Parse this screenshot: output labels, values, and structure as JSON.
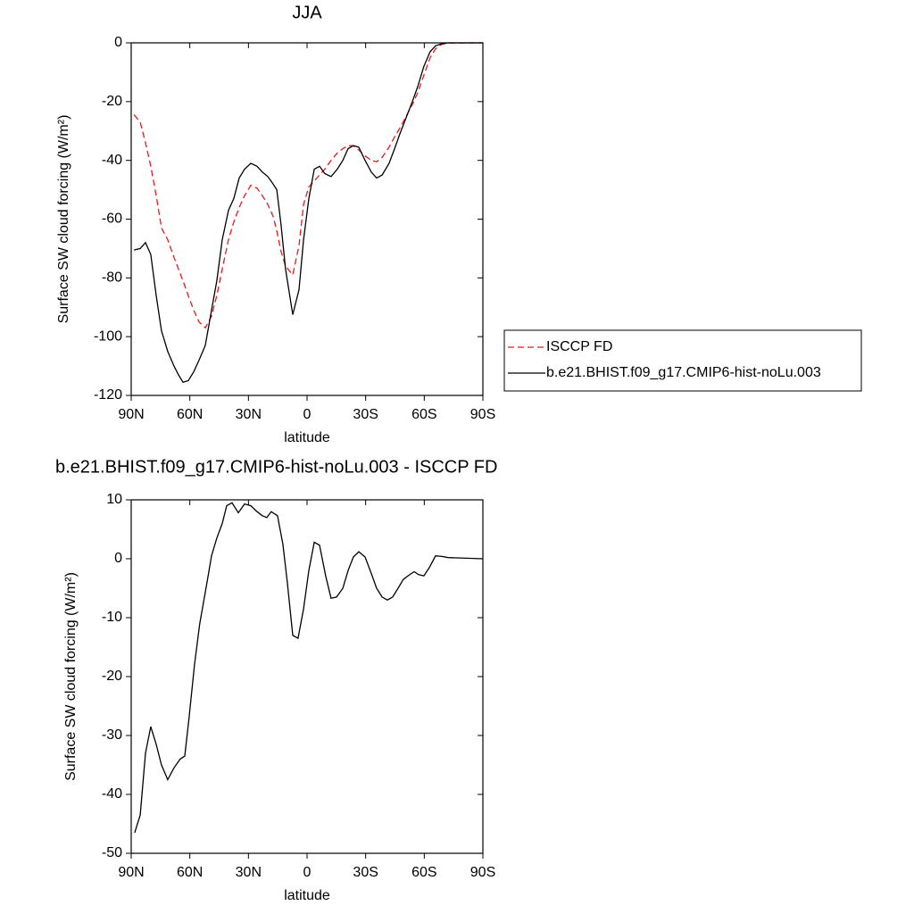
{
  "chart_data": [
    {
      "type": "line",
      "title": "JJA",
      "x_label": "latitude",
      "y_label": "Surface SW cloud forcing (W/m²)",
      "x": [
        88.6,
        85.4,
        82.7,
        80,
        77.2,
        74.5,
        71.3,
        68.1,
        65.8,
        63.5,
        60.8,
        58,
        55.3,
        52.1,
        48.9,
        46.2,
        43.4,
        40.2,
        37.5,
        34.7,
        32,
        28.8,
        25.6,
        22.9,
        20.1,
        17.4,
        15.5,
        13.3,
        11,
        7.3,
        4.1,
        1.8,
        -0.9,
        -3.7,
        -6.4,
        -9.1,
        -12.3,
        -15.5,
        -18.3,
        -21,
        -23.7,
        -26.5,
        -29.7,
        -32.9,
        -35.6,
        -38.4,
        -42,
        -44.8,
        -47.5,
        -50.7,
        -53.9,
        -56.6,
        -59.8,
        -63,
        -65.8,
        -69,
        -72.2,
        -90
      ],
      "series": [
        {
          "name": "ISCCP FD",
          "color": "#e8191c",
          "dashed": true,
          "values": [
            -24.5,
            -27,
            -34,
            -42,
            -52,
            -63,
            -67,
            -73,
            -77,
            -81,
            -86,
            -91,
            -95,
            -97,
            -93,
            -86,
            -77,
            -67,
            -61,
            -56,
            -52,
            -48.5,
            -49.5,
            -52,
            -55,
            -59,
            -64,
            -71,
            -76,
            -79,
            -69,
            -55,
            -49,
            -47,
            -45,
            -43,
            -40,
            -37.5,
            -36,
            -35,
            -35,
            -36.5,
            -38.5,
            -40,
            -40.5,
            -39,
            -35.5,
            -32,
            -29,
            -25,
            -21,
            -17,
            -11,
            -5,
            -2,
            -0.5,
            -0.1,
            0
          ]
        },
        {
          "name": "b.e21.BHIST.f09_g17.CMIP6-hist-noLu.003",
          "color": "#000000",
          "dashed": false,
          "values": [
            -70.5,
            -70,
            -68,
            -72,
            -86,
            -98,
            -105,
            -110,
            -113,
            -115.5,
            -115,
            -112,
            -108,
            -103,
            -91,
            -81,
            -67,
            -57,
            -53,
            -46,
            -43,
            -41,
            -42,
            -44,
            -45.5,
            -48,
            -50,
            -62,
            -77,
            -92.5,
            -84,
            -67,
            -53,
            -43,
            -42,
            -44.5,
            -45.5,
            -43,
            -40,
            -36,
            -35,
            -35.5,
            -40,
            -44,
            -46,
            -45,
            -41,
            -36,
            -31,
            -25.5,
            -20,
            -15,
            -8,
            -3,
            -1,
            -0.3,
            0,
            0
          ]
        }
      ],
      "xlim": [
        90,
        -90
      ],
      "xticks": [
        {
          "value": 90,
          "label": "90N"
        },
        {
          "value": 60,
          "label": "60N"
        },
        {
          "value": 30,
          "label": "30N"
        },
        0,
        {
          "value": -30,
          "label": "30S"
        },
        {
          "value": -60,
          "label": "60S"
        },
        {
          "value": -90,
          "label": "90S"
        }
      ],
      "ylim": [
        -120,
        0
      ],
      "yticks": [
        0,
        -20,
        -40,
        -60,
        -80,
        -100,
        -120
      ],
      "legend": "right"
    },
    {
      "type": "line",
      "title": "b.e21.BHIST.f09_g17.CMIP6-hist-noLu.003 - ISCCP FD",
      "x_label": "latitude",
      "y_label": "Surface SW cloud forcing (W/m²)",
      "x": [
        88.2,
        85.4,
        82.7,
        80,
        77.2,
        74.5,
        71.3,
        68.1,
        64.9,
        62.6,
        60.4,
        57.6,
        54.9,
        51.7,
        48.9,
        46.2,
        43.4,
        41.1,
        38.4,
        35.2,
        32,
        28.8,
        25.6,
        22.9,
        20.6,
        18.3,
        15.1,
        12.4,
        10.1,
        7.3,
        4.6,
        1.8,
        -0.9,
        -3.7,
        -6.4,
        -9.6,
        -12.3,
        -15.1,
        -18.3,
        -21,
        -23.7,
        -26.5,
        -29.7,
        -32.9,
        -35.6,
        -38.4,
        -41.1,
        -43.8,
        -46.6,
        -49.3,
        -52.1,
        -54.8,
        -57.1,
        -59.8,
        -62.6,
        -65.8,
        -69,
        -72.2,
        -90
      ],
      "series": [
        {
          "color": "#000000",
          "dashed": false,
          "values": [
            -46.5,
            -43.5,
            -33,
            -28.5,
            -31.5,
            -35,
            -37.5,
            -35.5,
            -34,
            -33.5,
            -27,
            -18,
            -11,
            -5,
            0.5,
            3.5,
            6,
            9,
            9.5,
            7.8,
            9.3,
            9,
            8,
            7.3,
            7,
            8,
            7.3,
            2.5,
            -4,
            -13,
            -13.5,
            -8.5,
            -2,
            2.8,
            2.3,
            -3,
            -6.7,
            -6.5,
            -5,
            -2,
            0.3,
            1.2,
            0.3,
            -2.5,
            -5,
            -6.5,
            -7,
            -6.5,
            -5,
            -3.5,
            -2.8,
            -2.2,
            -2.7,
            -2.9,
            -1.5,
            0.5,
            0.4,
            0.2,
            0
          ]
        }
      ],
      "xlim": [
        90,
        -90
      ],
      "xticks": [
        {
          "value": 90,
          "label": "90N"
        },
        {
          "value": 60,
          "label": "60N"
        },
        {
          "value": 30,
          "label": "30N"
        },
        0,
        {
          "value": -30,
          "label": "30S"
        },
        {
          "value": -60,
          "label": "60S"
        },
        {
          "value": -90,
          "label": "90S"
        }
      ],
      "ylim": [
        -50,
        10
      ],
      "yticks": [
        10,
        0,
        -10,
        -20,
        -30,
        -40,
        -50
      ]
    }
  ]
}
